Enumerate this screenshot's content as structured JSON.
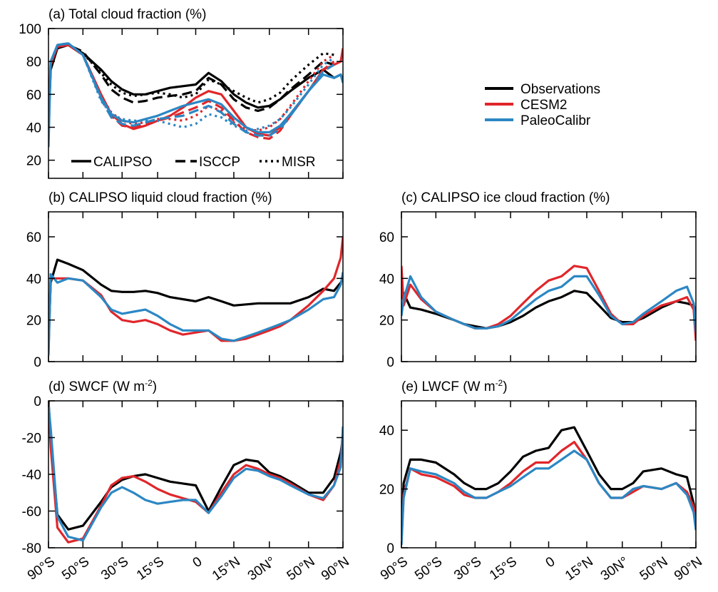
{
  "legend": {
    "entries": [
      {
        "name": "Observations",
        "color": "#000000"
      },
      {
        "name": "CESM2",
        "color": "#e0262b"
      },
      {
        "name": "PaleoCalibr",
        "color": "#2b87c4"
      }
    ],
    "line_styles": [
      {
        "name": "CALIPSO",
        "dash": "solid"
      },
      {
        "name": "ISCCP",
        "dash": "dashed"
      },
      {
        "name": "MISR",
        "dash": "dotted"
      }
    ]
  },
  "chart_data": [
    {
      "type": "line",
      "title": "(a) Total cloud fraction (%)",
      "xscale": "sine",
      "xlim": [
        -90,
        90
      ],
      "x": [
        -90,
        -80,
        -70,
        -60,
        -50,
        -40,
        -35,
        -30,
        -25,
        -20,
        -15,
        -10,
        -5,
        0,
        5,
        10,
        15,
        20,
        25,
        30,
        35,
        40,
        50,
        60,
        70,
        80,
        90
      ],
      "xticks": [
        -90,
        -50,
        -30,
        -15,
        0,
        15,
        30,
        50,
        90
      ],
      "ylim": [
        9,
        100
      ],
      "yticks": [
        20,
        40,
        60,
        80,
        100
      ],
      "series": [
        {
          "name": "Observations",
          "color": "#000000",
          "dash": "solid",
          "values": [
            40,
            75,
            88,
            90,
            85,
            75,
            68,
            63,
            60,
            60,
            62,
            64,
            65,
            66,
            73,
            68,
            60,
            55,
            52,
            53,
            57,
            62,
            70,
            75,
            70,
            72,
            68
          ]
        },
        {
          "name": "Observations",
          "color": "#000000",
          "dash": "dashed",
          "values": [
            null,
            null,
            89,
            90,
            86,
            72,
            63,
            58,
            55,
            56,
            58,
            59,
            60,
            62,
            70,
            66,
            57,
            52,
            50,
            52,
            57,
            63,
            72,
            80,
            78,
            null,
            null
          ]
        },
        {
          "name": "Observations",
          "color": "#000000",
          "dash": "dotted",
          "values": [
            null,
            null,
            88,
            90,
            85,
            73,
            66,
            61,
            59,
            60,
            61,
            60,
            58,
            60,
            69,
            66,
            62,
            58,
            55,
            57,
            61,
            68,
            78,
            85,
            84,
            null,
            null
          ]
        },
        {
          "name": "CESM2",
          "color": "#e0262b",
          "dash": "solid",
          "values": [
            48,
            78,
            89,
            90,
            84,
            60,
            48,
            42,
            39,
            41,
            44,
            47,
            52,
            58,
            62,
            60,
            50,
            40,
            36,
            35,
            40,
            48,
            62,
            75,
            78,
            80,
            88
          ]
        },
        {
          "name": "CESM2",
          "color": "#e0262b",
          "dash": "dashed",
          "values": [
            null,
            null,
            89,
            90,
            84,
            58,
            47,
            41,
            40,
            42,
            44,
            46,
            49,
            52,
            56,
            52,
            44,
            37,
            34,
            33,
            38,
            47,
            62,
            75,
            80,
            null,
            null
          ]
        },
        {
          "name": "CESM2",
          "color": "#e0262b",
          "dash": "dotted",
          "values": [
            null,
            null,
            89,
            90,
            84,
            59,
            49,
            44,
            42,
            43,
            45,
            45,
            44,
            47,
            53,
            50,
            43,
            39,
            38,
            40,
            45,
            53,
            68,
            80,
            84,
            null,
            null
          ]
        },
        {
          "name": "PaleoCalibr",
          "color": "#2b87c4",
          "dash": "solid",
          "values": [
            28,
            80,
            90,
            91,
            84,
            58,
            48,
            44,
            43,
            45,
            47,
            50,
            53,
            55,
            57,
            54,
            46,
            40,
            37,
            37,
            41,
            48,
            62,
            72,
            70,
            72,
            67
          ]
        },
        {
          "name": "PaleoCalibr",
          "color": "#2b87c4",
          "dash": "dashed",
          "values": [
            null,
            null,
            90,
            91,
            84,
            57,
            46,
            42,
            41,
            43,
            45,
            46,
            47,
            50,
            53,
            49,
            42,
            37,
            35,
            35,
            39,
            47,
            62,
            74,
            78,
            null,
            null
          ]
        },
        {
          "name": "PaleoCalibr",
          "color": "#2b87c4",
          "dash": "dotted",
          "values": [
            null,
            null,
            90,
            91,
            84,
            56,
            48,
            45,
            44,
            44,
            44,
            42,
            40,
            42,
            48,
            46,
            41,
            38,
            39,
            41,
            45,
            52,
            66,
            78,
            82,
            null,
            null
          ]
        }
      ]
    },
    {
      "type": "line",
      "title": "(b) CALIPSO liquid cloud fraction (%)",
      "xscale": "sine",
      "xlim": [
        -90,
        90
      ],
      "x": [
        -90,
        -80,
        -70,
        -60,
        -50,
        -40,
        -35,
        -30,
        -25,
        -20,
        -15,
        -10,
        -5,
        0,
        5,
        10,
        15,
        20,
        25,
        30,
        35,
        40,
        50,
        60,
        70,
        80,
        90
      ],
      "xticks": [
        -90,
        -50,
        -30,
        -15,
        0,
        15,
        30,
        50,
        90
      ],
      "ylim": [
        0,
        72
      ],
      "yticks": [
        0,
        20,
        40,
        60
      ],
      "series": [
        {
          "name": "Observations",
          "color": "#000000",
          "values": [
            10,
            38,
            49,
            47,
            44,
            37,
            34,
            33.5,
            33.5,
            34,
            33,
            31,
            30,
            29,
            31,
            29,
            27,
            27.5,
            28,
            28,
            28,
            28,
            31,
            35,
            34,
            38,
            40
          ]
        },
        {
          "name": "CESM2",
          "color": "#e0262b",
          "values": [
            5,
            40,
            40,
            40,
            39,
            32,
            24,
            20,
            19,
            20,
            18,
            15,
            13,
            14,
            15,
            10,
            10,
            11,
            13,
            15,
            17,
            20,
            27,
            34,
            40,
            50,
            60
          ]
        },
        {
          "name": "PaleoCalibr",
          "color": "#2b87c4",
          "values": [
            3,
            42,
            38,
            40,
            39,
            31,
            25,
            23,
            24,
            25,
            22,
            18,
            15,
            15,
            15,
            11,
            10,
            12,
            14,
            16,
            18,
            20,
            25,
            30,
            31,
            37,
            43
          ]
        }
      ]
    },
    {
      "type": "line",
      "title": "(c) CALIPSO ice cloud fraction (%)",
      "xscale": "sine",
      "xlim": [
        -90,
        90
      ],
      "x": [
        -90,
        -80,
        -70,
        -60,
        -50,
        -40,
        -35,
        -30,
        -25,
        -20,
        -15,
        -10,
        -5,
        0,
        5,
        10,
        15,
        20,
        25,
        30,
        35,
        40,
        50,
        60,
        70,
        80,
        90
      ],
      "xticks": [
        -90,
        -50,
        -30,
        -15,
        0,
        15,
        30,
        50,
        90
      ],
      "ylim": [
        0,
        72
      ],
      "yticks": [
        0,
        20,
        40,
        60
      ],
      "series": [
        {
          "name": "Observations",
          "color": "#000000",
          "values": [
            30,
            33,
            26,
            25,
            23,
            20,
            18,
            17,
            16,
            17,
            19,
            22,
            26,
            29,
            31,
            34,
            33,
            27,
            21,
            19,
            19,
            21,
            26,
            29,
            28,
            27,
            24
          ]
        },
        {
          "name": "CESM2",
          "color": "#e0262b",
          "values": [
            46,
            27,
            37,
            30,
            24,
            20,
            18,
            16,
            16,
            18,
            22,
            28,
            34,
            39,
            41,
            46,
            45,
            34,
            23,
            18,
            18,
            22,
            27,
            29,
            31,
            25,
            10
          ]
        },
        {
          "name": "PaleoCalibr",
          "color": "#2b87c4",
          "values": [
            22,
            30,
            41,
            31,
            24,
            20,
            18,
            16,
            16,
            17,
            20,
            25,
            30,
            34,
            36,
            41,
            41,
            32,
            22,
            18,
            19,
            23,
            29,
            34,
            36,
            28,
            14
          ]
        }
      ]
    },
    {
      "type": "line",
      "title": "(d) SWCF (W m",
      "title_sup": "-2",
      "title_end": ")",
      "xscale": "sine",
      "xlim": [
        -90,
        90
      ],
      "x": [
        -90,
        -80,
        -70,
        -60,
        -50,
        -40,
        -35,
        -30,
        -25,
        -20,
        -15,
        -10,
        -5,
        0,
        5,
        10,
        15,
        20,
        25,
        30,
        35,
        40,
        50,
        60,
        70,
        80,
        90
      ],
      "xticks": [
        {
          "value": -90,
          "label": "90°S"
        },
        {
          "value": -50,
          "label": "50°S"
        },
        {
          "value": -30,
          "label": "30°S"
        },
        {
          "value": -15,
          "label": "15°S"
        },
        0,
        {
          "value": 15,
          "label": "15°N"
        },
        {
          "value": 30,
          "label": "30N°"
        },
        {
          "value": 50,
          "label": "50°N"
        },
        {
          "value": 90,
          "label": "90°N"
        }
      ],
      "ylim": [
        -80,
        0
      ],
      "yticks": [
        0,
        -20,
        -40,
        -60,
        -80
      ],
      "series": [
        {
          "name": "Observations",
          "color": "#000000",
          "values": [
            0,
            -20,
            -62,
            -70,
            -68,
            -55,
            -47,
            -43,
            -41,
            -40,
            -42,
            -44,
            -45,
            -46,
            -60,
            -47,
            -35,
            -32,
            -33,
            -39,
            -41,
            -44,
            -50,
            -50,
            -42,
            -28,
            -20
          ]
        },
        {
          "name": "CESM2",
          "color": "#e0262b",
          "values": [
            -1,
            -25,
            -69,
            -77,
            -75,
            -57,
            -46,
            -42,
            -41,
            -44,
            -48,
            -51,
            -53,
            -55,
            -61,
            -50,
            -40,
            -35,
            -37,
            -40,
            -42,
            -45,
            -51,
            -54,
            -46,
            -32,
            -16
          ]
        },
        {
          "name": "PaleoCalibr",
          "color": "#2b87c4",
          "values": [
            -2,
            -15,
            -63,
            -74,
            -76,
            -58,
            -50,
            -47,
            -50,
            -54,
            -56,
            -55,
            -54,
            -54,
            -61,
            -52,
            -42,
            -37,
            -38,
            -41,
            -43,
            -46,
            -51,
            -53,
            -46,
            -36,
            -14
          ]
        }
      ]
    },
    {
      "type": "line",
      "title": "(e) LWCF (W m",
      "title_sup": "-2",
      "title_end": ")",
      "xscale": "sine",
      "xlim": [
        -90,
        90
      ],
      "x": [
        -90,
        -80,
        -70,
        -60,
        -50,
        -40,
        -35,
        -30,
        -25,
        -20,
        -15,
        -10,
        -5,
        0,
        5,
        10,
        15,
        20,
        25,
        30,
        35,
        40,
        50,
        60,
        70,
        80,
        90
      ],
      "xticks": [
        {
          "value": -90,
          "label": "90°S"
        },
        {
          "value": -50,
          "label": "50°S"
        },
        {
          "value": -30,
          "label": "30°S"
        },
        {
          "value": -15,
          "label": "15°S"
        },
        0,
        {
          "value": 15,
          "label": "15°N"
        },
        {
          "value": 30,
          "label": "30N°"
        },
        {
          "value": 50,
          "label": "50°N"
        },
        {
          "value": 90,
          "label": "90°N"
        }
      ],
      "ylim": [
        0,
        50
      ],
      "yticks": [
        0,
        20,
        40
      ],
      "series": [
        {
          "name": "Observations",
          "color": "#000000",
          "values": [
            3,
            22,
            30,
            30,
            29,
            25,
            22,
            20,
            20,
            22,
            26,
            31,
            33,
            34,
            40,
            41,
            33,
            25,
            20,
            20,
            22,
            26,
            27,
            25,
            24,
            15,
            10
          ]
        },
        {
          "name": "CESM2",
          "color": "#e0262b",
          "values": [
            2,
            18,
            27,
            25,
            24,
            21,
            18,
            17,
            17,
            19,
            22,
            26,
            29,
            29,
            33,
            36,
            30,
            22,
            17,
            17,
            19,
            21,
            20,
            22,
            19,
            14,
            9
          ]
        },
        {
          "name": "PaleoCalibr",
          "color": "#2b87c4",
          "values": [
            1,
            17,
            27,
            26,
            25,
            22,
            19,
            17,
            17,
            19,
            21,
            24,
            27,
            27,
            30,
            33,
            30,
            22,
            17,
            17,
            20,
            21,
            20,
            22,
            18,
            12,
            6
          ]
        }
      ]
    }
  ]
}
